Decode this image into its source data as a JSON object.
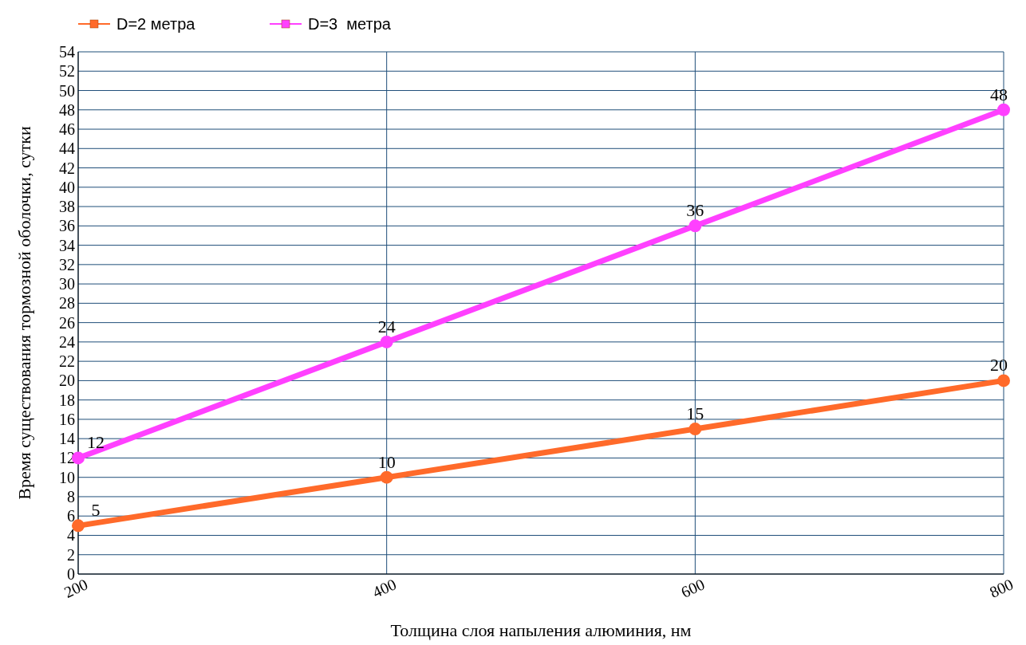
{
  "chart_data": {
    "type": "line",
    "xlabel": "Толщина слоя напыления алюминия, нм",
    "ylabel": "Время существования тормозной оболочки, сутки",
    "x": [
      200,
      400,
      600,
      800
    ],
    "series": [
      {
        "name": "D=2 метра",
        "color": "#ff6a2a",
        "values": [
          5,
          10,
          15,
          20
        ]
      },
      {
        "name": "D=3  метра",
        "color": "#ff40ff",
        "values": [
          12,
          24,
          36,
          48
        ]
      }
    ],
    "xlim": [
      200,
      800
    ],
    "xticks": [
      200,
      400,
      600,
      800
    ],
    "ylim": [
      0,
      54
    ],
    "yticks": [
      0,
      2,
      4,
      6,
      8,
      10,
      12,
      14,
      16,
      18,
      20,
      22,
      24,
      26,
      28,
      30,
      32,
      34,
      36,
      38,
      40,
      42,
      44,
      46,
      48,
      50,
      52,
      54
    ],
    "grid": true,
    "legend": "top left",
    "marker": "circle",
    "line_style": "solid",
    "data_labels": true
  }
}
